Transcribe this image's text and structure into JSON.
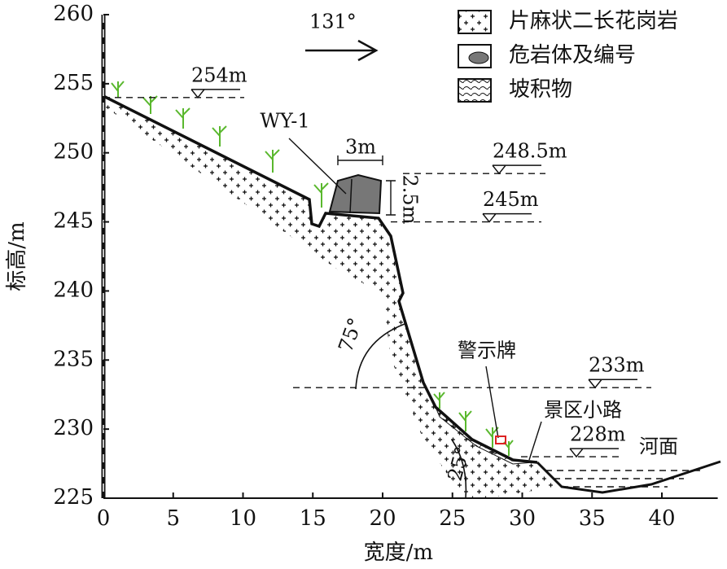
{
  "axes": {
    "xlabel": "宽度/m",
    "ylabel": "标高/m",
    "xlim": [
      0,
      44
    ],
    "ylim": [
      225,
      260
    ],
    "xticks": [
      0,
      5,
      10,
      15,
      20,
      25,
      30,
      35,
      40
    ],
    "yticks": [
      225,
      230,
      235,
      240,
      245,
      250,
      255,
      260
    ]
  },
  "legend": [
    {
      "label": "片麻状二长花岗岩"
    },
    {
      "label": "危岩体及编号"
    },
    {
      "label": "坡积物"
    }
  ],
  "direction": "131°",
  "levels": [
    {
      "label": "254m",
      "value": 254
    },
    {
      "label": "248.5m",
      "value": 248.5
    },
    {
      "label": "245m",
      "value": 245
    },
    {
      "label": "233m",
      "value": 233
    },
    {
      "label": "228m",
      "value": 228
    }
  ],
  "annotations": {
    "rock_id": "WY-1",
    "rock_width": "3m",
    "rock_height": "2.5m",
    "sign": "警示牌",
    "path": "景区小路",
    "river": "河面",
    "cliff_angle": "75°",
    "slope_angle": "25°"
  }
}
